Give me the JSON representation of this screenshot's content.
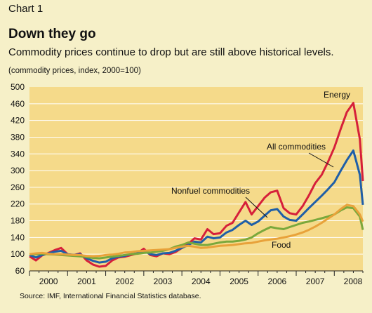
{
  "header": {
    "chart_label": "Chart 1",
    "title": "Down they go",
    "subtitle": "Commodity prices continue to drop but are still above historical levels.",
    "note": "(commodity prices, index, 2000=100)"
  },
  "source": "Source: IMF, International Financial Statistics database.",
  "colors": {
    "plot_bg": "#f5da8a",
    "page_bg": "#f6f0c8",
    "energy": "#d6203a",
    "all_commodities": "#1f5fa8",
    "nonfuel": "#7aa83c",
    "food": "#e8a23a",
    "grid": "#ffffff"
  },
  "chart_data": {
    "type": "line",
    "title": "Down they go",
    "xlabel": "",
    "ylabel": "",
    "ylim": [
      60,
      500
    ],
    "yticks": [
      60,
      100,
      140,
      180,
      220,
      260,
      300,
      340,
      380,
      420,
      460,
      500
    ],
    "xlim": [
      2000.0,
      2008.75
    ],
    "x_tick_labels": [
      "2000",
      "2001",
      "2002",
      "2003",
      "2004",
      "2005",
      "2006",
      "2007",
      "2008"
    ],
    "grid": true,
    "annotations": [
      {
        "text": "Energy",
        "series": "Energy"
      },
      {
        "text": "All commodities",
        "series": "All commodities"
      },
      {
        "text": "Nonfuel commodities",
        "series": "Nonfuel commodities"
      },
      {
        "text": "Food",
        "series": "Food"
      }
    ],
    "series": [
      {
        "name": "Energy",
        "color_key": "energy",
        "points": [
          [
            2000.0,
            95
          ],
          [
            2000.17,
            85
          ],
          [
            2000.33,
            97
          ],
          [
            2000.5,
            103
          ],
          [
            2000.67,
            110
          ],
          [
            2000.83,
            115
          ],
          [
            2001.0,
            100
          ],
          [
            2001.17,
            98
          ],
          [
            2001.33,
            102
          ],
          [
            2001.5,
            85
          ],
          [
            2001.67,
            75
          ],
          [
            2001.83,
            70
          ],
          [
            2002.0,
            72
          ],
          [
            2002.17,
            85
          ],
          [
            2002.33,
            92
          ],
          [
            2002.5,
            94
          ],
          [
            2002.67,
            98
          ],
          [
            2002.83,
            102
          ],
          [
            2003.0,
            113
          ],
          [
            2003.17,
            98
          ],
          [
            2003.33,
            95
          ],
          [
            2003.5,
            102
          ],
          [
            2003.67,
            100
          ],
          [
            2003.83,
            105
          ],
          [
            2004.0,
            115
          ],
          [
            2004.17,
            125
          ],
          [
            2004.33,
            138
          ],
          [
            2004.5,
            135
          ],
          [
            2004.67,
            160
          ],
          [
            2004.83,
            148
          ],
          [
            2005.0,
            150
          ],
          [
            2005.17,
            168
          ],
          [
            2005.33,
            175
          ],
          [
            2005.5,
            200
          ],
          [
            2005.67,
            225
          ],
          [
            2005.83,
            195
          ],
          [
            2006.0,
            215
          ],
          [
            2006.17,
            235
          ],
          [
            2006.33,
            248
          ],
          [
            2006.5,
            252
          ],
          [
            2006.67,
            210
          ],
          [
            2006.83,
            198
          ],
          [
            2007.0,
            195
          ],
          [
            2007.17,
            215
          ],
          [
            2007.33,
            240
          ],
          [
            2007.5,
            270
          ],
          [
            2007.67,
            290
          ],
          [
            2007.83,
            320
          ],
          [
            2008.0,
            355
          ],
          [
            2008.17,
            400
          ],
          [
            2008.33,
            440
          ],
          [
            2008.5,
            462
          ],
          [
            2008.67,
            375
          ],
          [
            2008.75,
            275
          ]
        ]
      },
      {
        "name": "All commodities",
        "color_key": "all_commodities",
        "points": [
          [
            2000.0,
            98
          ],
          [
            2000.17,
            92
          ],
          [
            2000.33,
            98
          ],
          [
            2000.5,
            102
          ],
          [
            2000.67,
            106
          ],
          [
            2000.83,
            108
          ],
          [
            2001.0,
            100
          ],
          [
            2001.17,
            98
          ],
          [
            2001.33,
            100
          ],
          [
            2001.5,
            90
          ],
          [
            2001.67,
            84
          ],
          [
            2001.83,
            80
          ],
          [
            2002.0,
            82
          ],
          [
            2002.17,
            90
          ],
          [
            2002.33,
            94
          ],
          [
            2002.5,
            96
          ],
          [
            2002.67,
            100
          ],
          [
            2002.83,
            102
          ],
          [
            2003.0,
            108
          ],
          [
            2003.17,
            100
          ],
          [
            2003.33,
            98
          ],
          [
            2003.5,
            102
          ],
          [
            2003.67,
            103
          ],
          [
            2003.83,
            108
          ],
          [
            2004.0,
            115
          ],
          [
            2004.17,
            122
          ],
          [
            2004.33,
            130
          ],
          [
            2004.5,
            128
          ],
          [
            2004.67,
            142
          ],
          [
            2004.83,
            138
          ],
          [
            2005.0,
            140
          ],
          [
            2005.17,
            152
          ],
          [
            2005.33,
            158
          ],
          [
            2005.5,
            170
          ],
          [
            2005.67,
            180
          ],
          [
            2005.83,
            170
          ],
          [
            2006.0,
            178
          ],
          [
            2006.17,
            192
          ],
          [
            2006.33,
            205
          ],
          [
            2006.5,
            208
          ],
          [
            2006.67,
            190
          ],
          [
            2006.83,
            182
          ],
          [
            2007.0,
            180
          ],
          [
            2007.17,
            195
          ],
          [
            2007.33,
            210
          ],
          [
            2007.5,
            225
          ],
          [
            2007.67,
            240
          ],
          [
            2007.83,
            255
          ],
          [
            2008.0,
            272
          ],
          [
            2008.17,
            300
          ],
          [
            2008.33,
            325
          ],
          [
            2008.5,
            348
          ],
          [
            2008.67,
            290
          ],
          [
            2008.75,
            218
          ]
        ]
      },
      {
        "name": "Nonfuel commodities",
        "color_key": "nonfuel",
        "points": [
          [
            2000.0,
            100
          ],
          [
            2000.17,
            100
          ],
          [
            2000.33,
            101
          ],
          [
            2000.5,
            100
          ],
          [
            2000.67,
            99
          ],
          [
            2000.83,
            98
          ],
          [
            2001.0,
            97
          ],
          [
            2001.17,
            96
          ],
          [
            2001.33,
            95
          ],
          [
            2001.5,
            93
          ],
          [
            2001.67,
            91
          ],
          [
            2001.83,
            90
          ],
          [
            2002.0,
            92
          ],
          [
            2002.17,
            94
          ],
          [
            2002.33,
            96
          ],
          [
            2002.5,
            98
          ],
          [
            2002.67,
            100
          ],
          [
            2002.83,
            101
          ],
          [
            2003.0,
            103
          ],
          [
            2003.17,
            104
          ],
          [
            2003.33,
            106
          ],
          [
            2003.5,
            108
          ],
          [
            2003.67,
            112
          ],
          [
            2003.83,
            118
          ],
          [
            2004.0,
            122
          ],
          [
            2004.17,
            128
          ],
          [
            2004.33,
            125
          ],
          [
            2004.5,
            122
          ],
          [
            2004.67,
            122
          ],
          [
            2004.83,
            125
          ],
          [
            2005.0,
            128
          ],
          [
            2005.17,
            130
          ],
          [
            2005.33,
            130
          ],
          [
            2005.5,
            132
          ],
          [
            2005.67,
            135
          ],
          [
            2005.83,
            140
          ],
          [
            2006.0,
            150
          ],
          [
            2006.17,
            158
          ],
          [
            2006.33,
            165
          ],
          [
            2006.5,
            162
          ],
          [
            2006.67,
            160
          ],
          [
            2006.83,
            165
          ],
          [
            2007.0,
            170
          ],
          [
            2007.17,
            175
          ],
          [
            2007.33,
            178
          ],
          [
            2007.5,
            182
          ],
          [
            2007.67,
            186
          ],
          [
            2007.83,
            190
          ],
          [
            2008.0,
            195
          ],
          [
            2008.17,
            205
          ],
          [
            2008.33,
            212
          ],
          [
            2008.5,
            210
          ],
          [
            2008.67,
            190
          ],
          [
            2008.75,
            158
          ]
        ]
      },
      {
        "name": "Food",
        "color_key": "food",
        "points": [
          [
            2000.0,
            100
          ],
          [
            2000.17,
            102
          ],
          [
            2000.33,
            103
          ],
          [
            2000.5,
            101
          ],
          [
            2000.67,
            100
          ],
          [
            2000.83,
            100
          ],
          [
            2001.0,
            99
          ],
          [
            2001.17,
            98
          ],
          [
            2001.33,
            98
          ],
          [
            2001.5,
            96
          ],
          [
            2001.67,
            95
          ],
          [
            2001.83,
            96
          ],
          [
            2002.0,
            98
          ],
          [
            2002.17,
            99
          ],
          [
            2002.33,
            101
          ],
          [
            2002.5,
            104
          ],
          [
            2002.67,
            105
          ],
          [
            2002.83,
            107
          ],
          [
            2003.0,
            108
          ],
          [
            2003.17,
            109
          ],
          [
            2003.33,
            110
          ],
          [
            2003.5,
            111
          ],
          [
            2003.67,
            112
          ],
          [
            2003.83,
            115
          ],
          [
            2004.0,
            118
          ],
          [
            2004.17,
            120
          ],
          [
            2004.33,
            118
          ],
          [
            2004.5,
            115
          ],
          [
            2004.67,
            116
          ],
          [
            2004.83,
            118
          ],
          [
            2005.0,
            120
          ],
          [
            2005.17,
            121
          ],
          [
            2005.33,
            122
          ],
          [
            2005.5,
            124
          ],
          [
            2005.67,
            126
          ],
          [
            2005.83,
            127
          ],
          [
            2006.0,
            130
          ],
          [
            2006.17,
            133
          ],
          [
            2006.33,
            135
          ],
          [
            2006.5,
            137
          ],
          [
            2006.67,
            140
          ],
          [
            2006.83,
            143
          ],
          [
            2007.0,
            147
          ],
          [
            2007.17,
            152
          ],
          [
            2007.33,
            158
          ],
          [
            2007.5,
            166
          ],
          [
            2007.67,
            175
          ],
          [
            2007.83,
            185
          ],
          [
            2008.0,
            195
          ],
          [
            2008.17,
            208
          ],
          [
            2008.33,
            218
          ],
          [
            2008.5,
            215
          ],
          [
            2008.67,
            195
          ],
          [
            2008.75,
            178
          ]
        ]
      }
    ]
  }
}
